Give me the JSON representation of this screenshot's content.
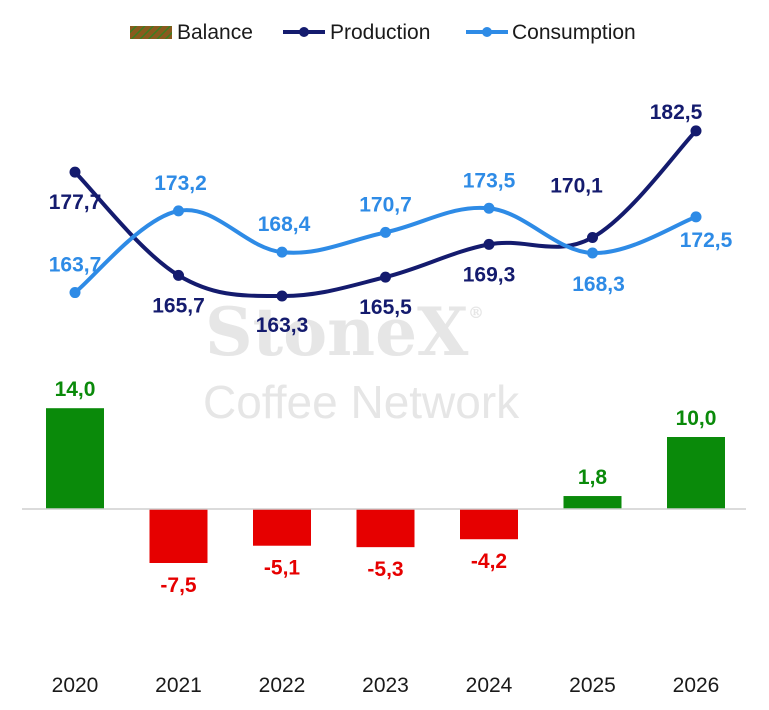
{
  "watermark": {
    "brand": "StoneX",
    "sub": "Coffee Network",
    "mark": "®"
  },
  "colors": {
    "production": "#141b6e",
    "consumption": "#2e8be6",
    "positive": "#0a8a0a",
    "negative": "#e60000",
    "balance_a": "#8a5a1e",
    "balance_b": "#3f7d20"
  },
  "chart_data": {
    "type": "bar+line",
    "categories": [
      "2020",
      "2021",
      "2022",
      "2023",
      "2024",
      "2025",
      "2026"
    ],
    "legend": {
      "position": "top",
      "labels": [
        "Balance",
        "Production",
        "Consumption"
      ]
    },
    "series": [
      {
        "name": "Balance",
        "type": "bar",
        "values": [
          14.0,
          -7.5,
          -5.1,
          -5.3,
          -4.2,
          1.8,
          10.0
        ],
        "labels": [
          "14,0",
          "-7,5",
          "-5,1",
          "-5,3",
          "-4,2",
          "1,8",
          "10,0"
        ]
      },
      {
        "name": "Production",
        "type": "line",
        "values": [
          177.7,
          165.7,
          163.3,
          165.5,
          169.3,
          170.1,
          182.5
        ],
        "labels": [
          "177,7",
          "165,7",
          "163,3",
          "165,5",
          "169,3",
          "170,1",
          "182,5"
        ]
      },
      {
        "name": "Consumption",
        "type": "line",
        "values": [
          163.7,
          173.2,
          168.4,
          170.7,
          173.5,
          168.3,
          172.5
        ],
        "labels": [
          "163,7",
          "173,2",
          "168,4",
          "170,7",
          "173,5",
          "168,3",
          "172,5"
        ]
      }
    ],
    "grid": false
  }
}
